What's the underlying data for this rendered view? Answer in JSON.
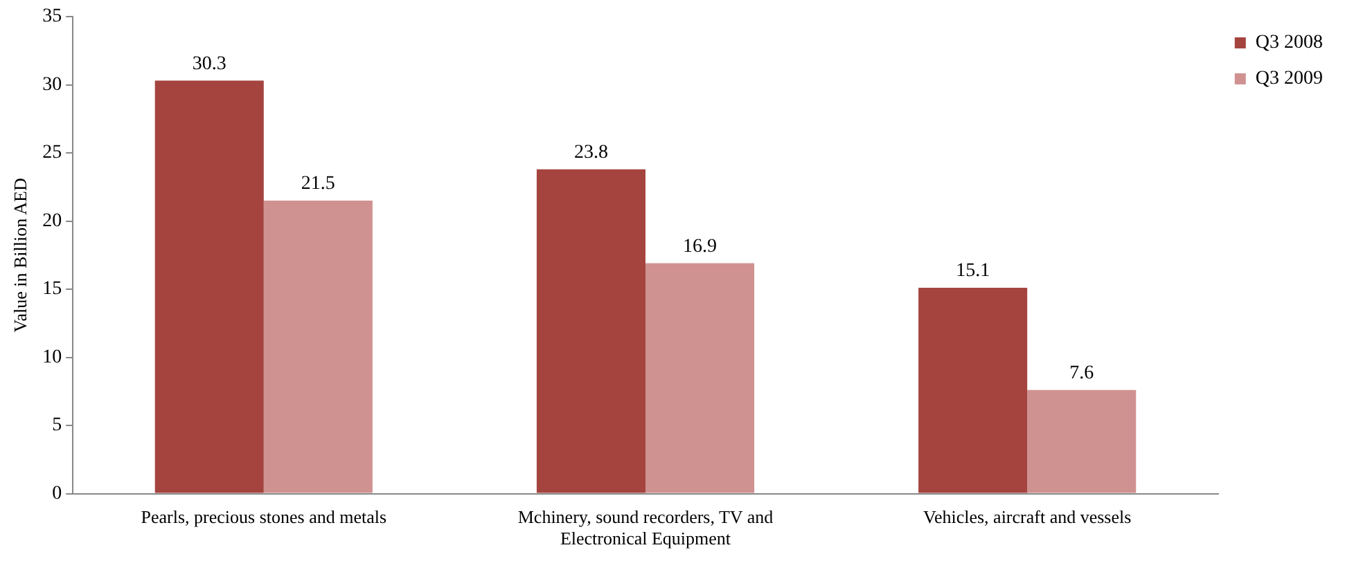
{
  "chart_data": {
    "type": "bar",
    "ylabel": "Value in Billion AED",
    "categories": [
      "Pearls, precious stones and metals",
      "Mchinery, sound recorders, TV and Electronical Equipment",
      "Vehicles, aircraft and vessels"
    ],
    "series": [
      {
        "name": "Q3 2008",
        "color": "#a5443f",
        "values": [
          30.3,
          23.8,
          15.1
        ]
      },
      {
        "name": "Q3 2009",
        "color": "#d09291",
        "values": [
          21.5,
          16.9,
          7.6
        ]
      }
    ],
    "ylim": [
      0,
      35
    ],
    "yticks": [
      0,
      5,
      10,
      15,
      20,
      25,
      30,
      35
    ],
    "grid": false,
    "legend": "top right",
    "data_labels": true
  }
}
